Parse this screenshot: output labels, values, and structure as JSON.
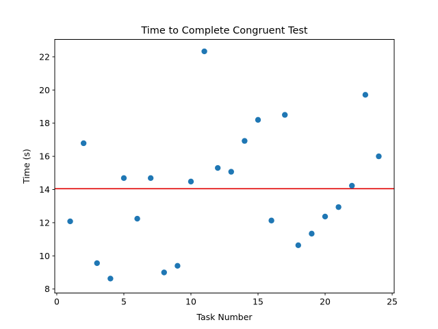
{
  "chart_data": {
    "type": "scatter",
    "title": "Time to Complete Congruent Test",
    "xlabel": "Task Number",
    "ylabel": "Time (s)",
    "xlim": [
      -0.15,
      25.15
    ],
    "ylim": [
      7.76,
      23.05
    ],
    "xticks": [
      0,
      5,
      10,
      15,
      20,
      25
    ],
    "yticks": [
      8,
      10,
      12,
      14,
      16,
      18,
      20,
      22
    ],
    "grid": false,
    "legend": "none",
    "point_color": "#1f77b4",
    "reference_line": {
      "orientation": "horizontal",
      "y": 14.05,
      "color": "#e00000"
    },
    "series": [
      {
        "x": [
          1,
          2,
          3,
          4,
          5,
          6,
          7,
          8,
          9,
          10,
          11,
          12,
          13,
          14,
          15,
          16,
          17,
          18,
          19,
          20,
          21,
          22,
          23,
          24
        ],
        "y": [
          12.08,
          16.79,
          9.56,
          8.63,
          14.69,
          12.24,
          14.69,
          9.0,
          9.4,
          14.48,
          22.33,
          15.3,
          15.07,
          16.93,
          18.2,
          12.13,
          18.5,
          10.64,
          11.34,
          12.37,
          12.94,
          14.23,
          19.71,
          16.0
        ]
      }
    ]
  }
}
